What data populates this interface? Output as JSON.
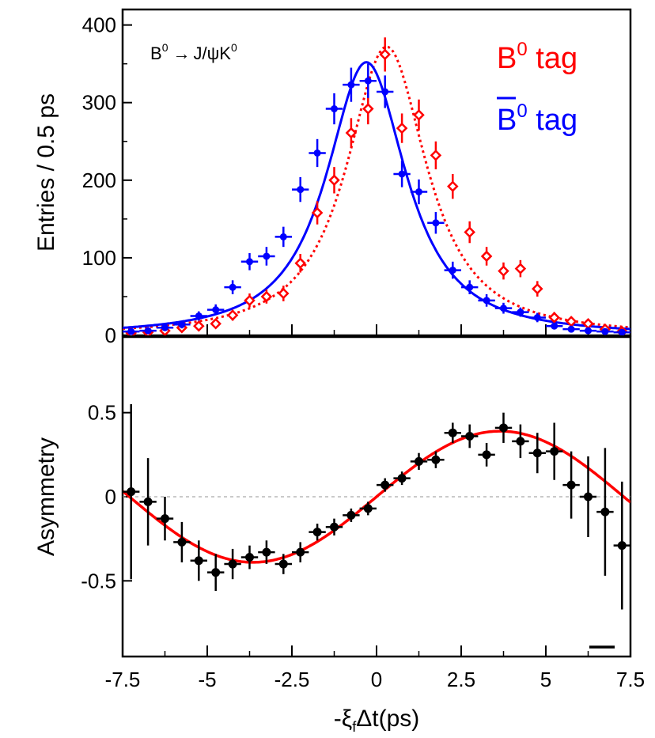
{
  "chart_data": [
    {
      "type": "scatter",
      "panel": "top",
      "ylabel": "Entries / 0.5 ps",
      "ylim": [
        0,
        420
      ],
      "yticks": [
        "0",
        "100",
        "200",
        "300",
        "400"
      ],
      "xlim": [
        -7.5,
        7.5
      ],
      "annotation": {
        "prefix": "B",
        "prefix_sup": "0",
        "arrow": "→",
        "suffix": "J/ψK",
        "suffix_sup": "0"
      },
      "legend": [
        {
          "label_base": "B",
          "label_sup": "0",
          "label_rest": " tag",
          "bar": false,
          "color": "#ff0000"
        },
        {
          "label_base": "B",
          "label_sup": "0",
          "label_rest": " tag",
          "bar": true,
          "color": "#0000ff"
        }
      ],
      "series": [
        {
          "name": "B0 tag",
          "color": "#ff0000",
          "marker": "open-diamond",
          "fit": "dotted",
          "fit_peak": 372,
          "fit_peak_x": 0.3,
          "fit_width": 1.55,
          "x": [
            -7.25,
            -6.75,
            -6.25,
            -5.75,
            -5.25,
            -4.75,
            -4.25,
            -3.75,
            -3.25,
            -2.75,
            -2.25,
            -1.75,
            -1.25,
            -0.75,
            -0.25,
            0.25,
            0.75,
            1.25,
            1.75,
            2.25,
            2.75,
            3.25,
            3.75,
            4.25,
            4.75,
            5.25,
            5.75,
            6.25,
            6.75,
            7.25
          ],
          "y": [
            3,
            4,
            6,
            10,
            12,
            15,
            26,
            45,
            50,
            54,
            93,
            158,
            200,
            261,
            292,
            362,
            267,
            284,
            232,
            192,
            133,
            102,
            83,
            86,
            60,
            23,
            18,
            15,
            8,
            5
          ],
          "err": [
            3,
            3,
            4,
            5,
            5,
            6,
            7,
            9,
            9,
            10,
            12,
            15,
            17,
            19,
            20,
            22,
            19,
            20,
            18,
            16,
            14,
            12,
            11,
            11,
            10,
            7,
            6,
            5,
            4,
            3
          ]
        },
        {
          "name": "B0bar tag",
          "color": "#0000ff",
          "marker": "cross",
          "fit": "solid",
          "fit_peak": 352,
          "fit_peak_x": -0.3,
          "fit_width": 1.55,
          "x": [
            -7.25,
            -6.75,
            -6.25,
            -5.75,
            -5.25,
            -4.75,
            -4.25,
            -3.75,
            -3.25,
            -2.75,
            -2.25,
            -1.75,
            -1.25,
            -0.75,
            -0.25,
            0.25,
            0.75,
            1.25,
            1.75,
            2.25,
            2.75,
            3.25,
            3.75,
            4.25,
            4.75,
            5.25,
            5.75,
            6.25,
            6.75,
            7.25
          ],
          "y": [
            5,
            6,
            10,
            14,
            25,
            33,
            62,
            95,
            102,
            127,
            188,
            235,
            292,
            323,
            328,
            314,
            208,
            185,
            145,
            84,
            62,
            45,
            35,
            30,
            23,
            12,
            8,
            6,
            5,
            4
          ],
          "err": [
            3,
            3,
            4,
            5,
            6,
            7,
            9,
            11,
            12,
            13,
            16,
            18,
            20,
            22,
            22,
            21,
            17,
            16,
            14,
            11,
            9,
            8,
            7,
            6,
            6,
            4,
            3,
            3,
            3,
            2
          ]
        }
      ]
    },
    {
      "type": "scatter",
      "panel": "bottom",
      "ylabel": "Asymmetry",
      "xlabel_prefix": "-ξ",
      "xlabel_sub": "f",
      "xlabel_suffix": "Δt(ps)",
      "ylim": [
        -0.95,
        0.95
      ],
      "yticks": [
        "-0.5",
        "0",
        "0.5"
      ],
      "xlim": [
        -7.5,
        7.5
      ],
      "xticks": [
        "-7.5",
        "-5",
        "-2.5",
        "0",
        "2.5",
        "5",
        "7.5"
      ],
      "zero_line": "dashed",
      "fit": {
        "type": "sine",
        "amplitude": 0.39,
        "period": 14.6,
        "color": "#ff0000"
      },
      "series": [
        {
          "name": "Asymmetry",
          "color": "#000000",
          "x": [
            -7.25,
            -6.75,
            -6.25,
            -5.75,
            -5.25,
            -4.75,
            -4.25,
            -3.75,
            -3.25,
            -2.75,
            -2.25,
            -1.75,
            -1.25,
            -0.75,
            -0.25,
            0.25,
            0.75,
            1.25,
            1.75,
            2.25,
            2.75,
            3.25,
            3.75,
            4.25,
            4.75,
            5.25,
            5.75,
            6.25,
            6.75,
            7.25
          ],
          "y": [
            0.03,
            -0.03,
            -0.13,
            -0.27,
            -0.38,
            -0.45,
            -0.4,
            -0.36,
            -0.33,
            -0.4,
            -0.33,
            -0.21,
            -0.18,
            -0.11,
            -0.07,
            0.07,
            0.11,
            0.21,
            0.22,
            0.38,
            0.36,
            0.25,
            0.41,
            0.33,
            0.26,
            0.27,
            0.07,
            0.0,
            -0.09,
            -0.29
          ],
          "err": [
            0.52,
            0.26,
            0.13,
            0.12,
            0.12,
            0.11,
            0.09,
            0.07,
            0.07,
            0.06,
            0.06,
            0.05,
            0.05,
            0.04,
            0.04,
            0.04,
            0.04,
            0.05,
            0.05,
            0.06,
            0.07,
            0.07,
            0.09,
            0.1,
            0.12,
            0.17,
            0.2,
            0.24,
            0.38,
            0.38
          ]
        }
      ]
    }
  ]
}
